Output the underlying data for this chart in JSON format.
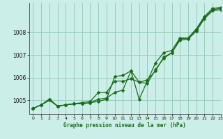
{
  "background_color": "#cceee8",
  "plot_bg_color": "#cceee8",
  "grid_color": "#99ccbb",
  "line_color": "#1a6b1a",
  "xlabel": "Graphe pression niveau de la mer (hPa)",
  "ylim": [
    1004.4,
    1009.3
  ],
  "xlim": [
    -0.5,
    23
  ],
  "yticks": [
    1005,
    1006,
    1007,
    1008
  ],
  "xticks": [
    0,
    1,
    2,
    3,
    4,
    5,
    6,
    7,
    8,
    9,
    10,
    11,
    12,
    13,
    14,
    15,
    16,
    17,
    18,
    19,
    20,
    21,
    22,
    23
  ],
  "series": [
    [
      1004.65,
      1004.8,
      1005.0,
      1004.75,
      1004.8,
      1004.85,
      1004.85,
      1004.9,
      1004.95,
      1005.05,
      1006.05,
      1006.1,
      1006.3,
      1005.05,
      1005.85,
      1006.65,
      1007.1,
      1007.2,
      1007.75,
      1007.75,
      1008.15,
      1008.7,
      1009.05,
      1009.1
    ],
    [
      1004.65,
      1004.8,
      1005.05,
      1004.75,
      1004.8,
      1004.85,
      1004.85,
      1004.9,
      1005.05,
      1005.1,
      1005.35,
      1005.45,
      1006.3,
      1005.8,
      1005.75,
      1006.35,
      1006.85,
      1007.1,
      1007.7,
      1007.75,
      1008.1,
      1008.65,
      1009.0,
      1009.05
    ],
    [
      1004.65,
      1004.8,
      1005.05,
      1004.75,
      1004.8,
      1004.85,
      1004.9,
      1004.95,
      1005.35,
      1005.35,
      1005.85,
      1005.85,
      1005.95,
      1005.8,
      1005.9,
      1006.3,
      1006.9,
      1007.1,
      1007.65,
      1007.7,
      1008.05,
      1008.6,
      1008.95,
      1009.0
    ]
  ]
}
